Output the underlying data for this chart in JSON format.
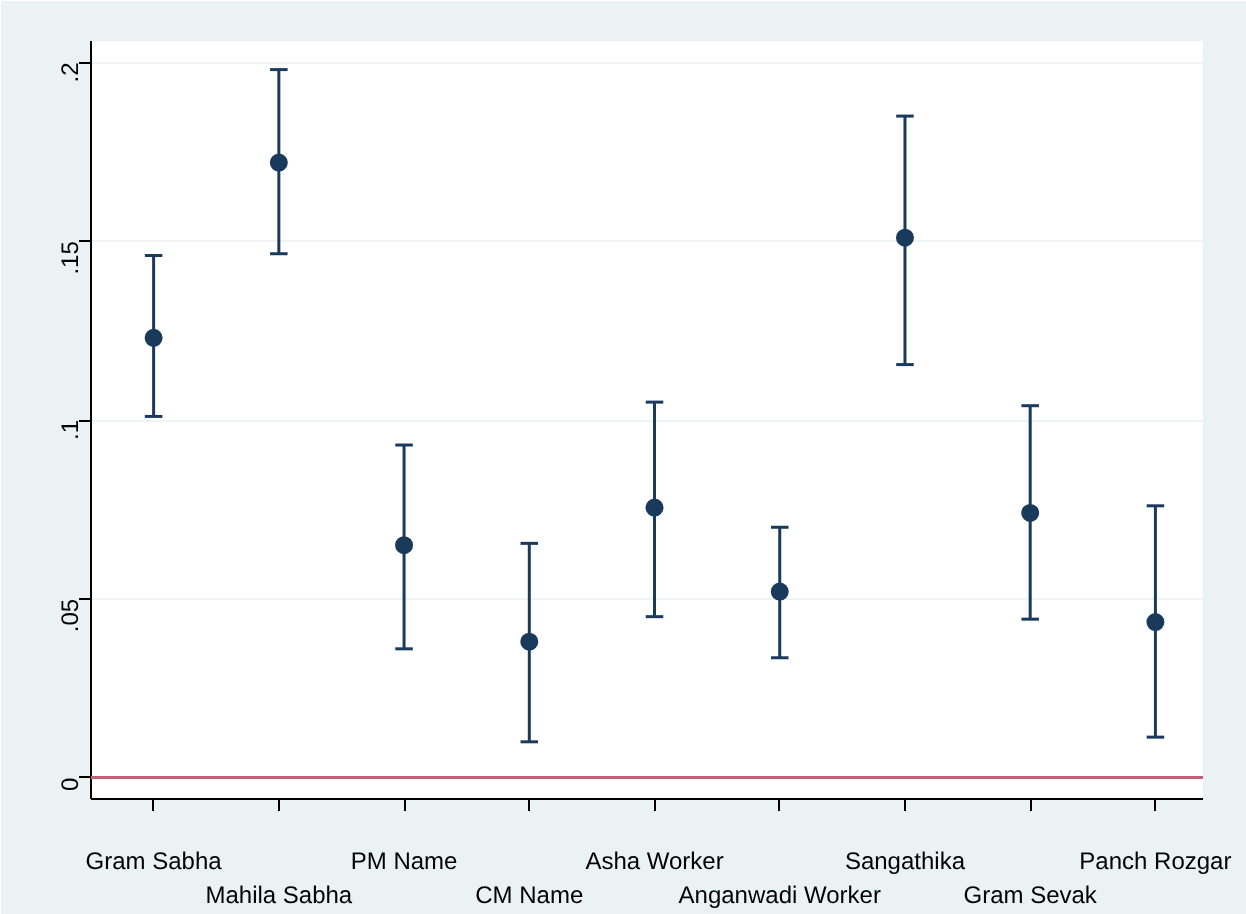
{
  "chart_data": {
    "type": "scatter",
    "categories": [
      "Gram Sabha",
      "Mahila Sabha",
      "PM Name",
      "CM Name",
      "Asha Worker",
      "Anganwadi Worker",
      "Sangathika",
      "Gram Sevak",
      "Panch Rozgar"
    ],
    "series": [
      {
        "color": "#1a3a5c",
        "values": [
          0.123,
          0.172,
          0.065,
          0.038,
          0.0755,
          0.052,
          0.151,
          0.074,
          0.0435
        ],
        "errors": [
          [
            0.101,
            0.146
          ],
          [
            0.1465,
            0.198
          ],
          [
            0.036,
            0.093
          ],
          [
            0.01,
            0.0655
          ],
          [
            0.045,
            0.105
          ],
          [
            0.0335,
            0.07
          ],
          [
            0.1155,
            0.185
          ],
          [
            0.0443,
            0.104
          ],
          [
            0.0113,
            0.076
          ]
        ]
      }
    ],
    "ylim": [
      -0.006,
      0.206
    ],
    "yticks": [
      0,
      {
        "value": 0.05,
        "label": ".05"
      },
      {
        "value": 0.1,
        "label": ".1"
      },
      {
        "value": 0.15,
        "label": ".15"
      },
      {
        "value": 0.2,
        "label": ".2"
      }
    ],
    "ref_lines": [
      {
        "axis": "y",
        "value": 0,
        "color": "#c0607a"
      }
    ],
    "grid": "y",
    "marker": "circle"
  }
}
